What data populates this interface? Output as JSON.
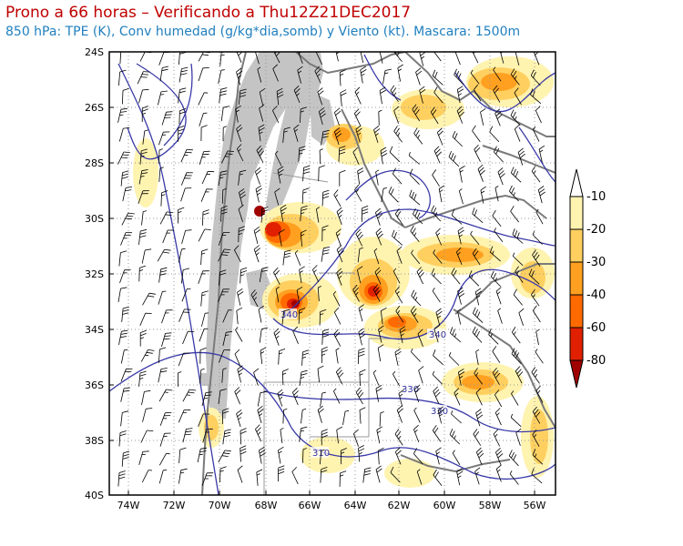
{
  "header": {
    "title": "Prono a 66 horas – Verificando a Thu12Z21DEC2017",
    "subtitle": "850 hPa: TPE (K), Conv humedad (g/kg*dia,somb) y Viento (kt). Mascara: 1500m"
  },
  "map": {
    "lat_ticks": [
      "24S",
      "26S",
      "28S",
      "30S",
      "32S",
      "34S",
      "36S",
      "38S",
      "40S"
    ],
    "lon_ticks": [
      "74W",
      "72W",
      "70W",
      "68W",
      "66W",
      "64W",
      "62W",
      "60W",
      "58W",
      "56W"
    ],
    "contour_labels": [
      "340",
      "340",
      "330",
      "330",
      "310"
    ]
  },
  "colorbar": {
    "labels": [
      "-10",
      "-20",
      "-30",
      "-40",
      "-60",
      "-80"
    ],
    "colors": [
      "#ffffff",
      "#fff3b0",
      "#ffd060",
      "#ffa020",
      "#ff6a00",
      "#e02000",
      "#a00000"
    ]
  },
  "colors": {
    "mask": "#c4c4c4",
    "contour": "#3a3aa8",
    "border": "#7a7a7a",
    "barb": "#000000"
  }
}
